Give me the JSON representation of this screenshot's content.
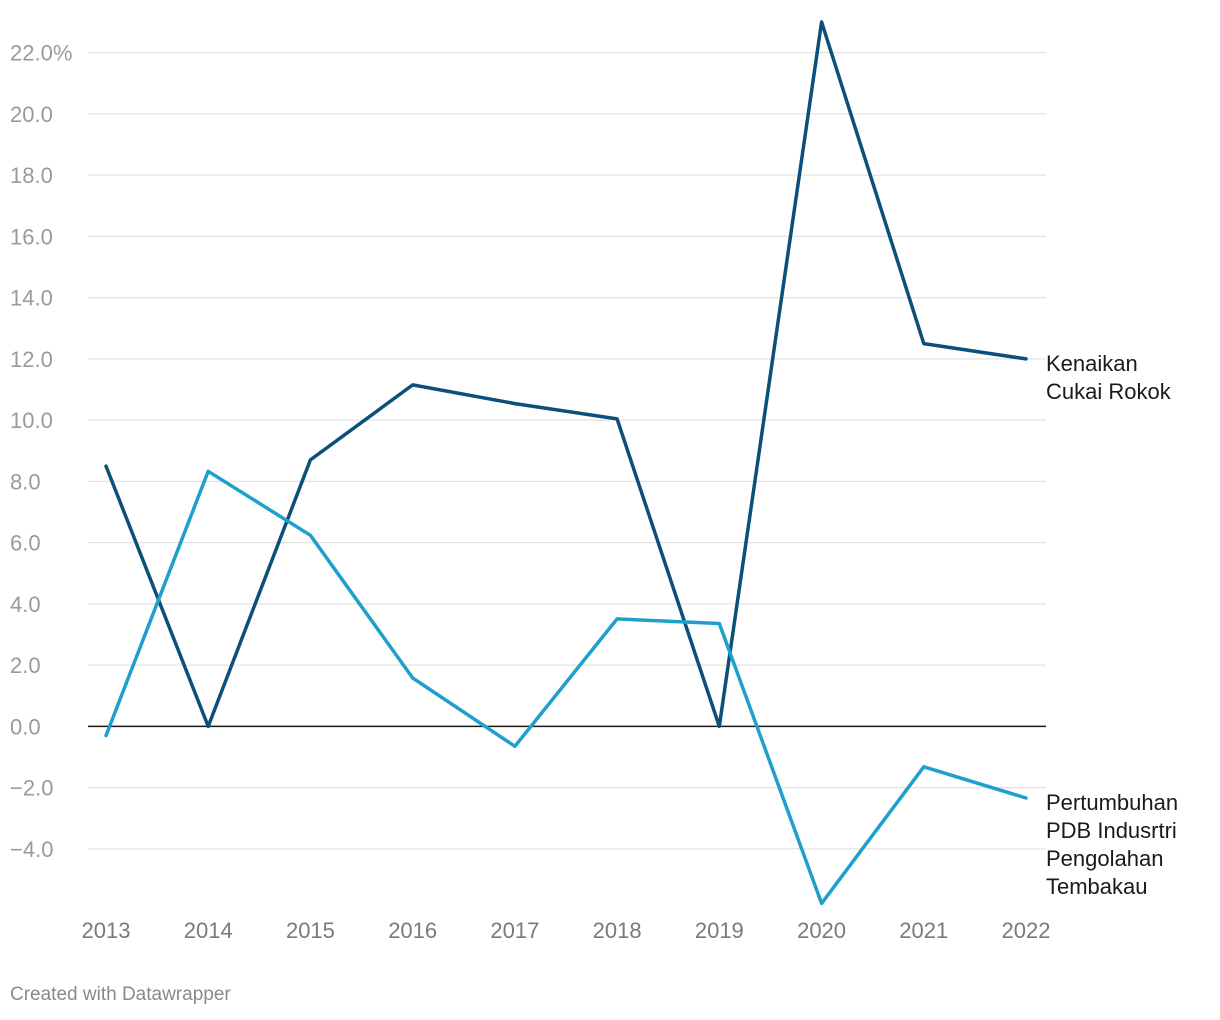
{
  "chart_data": {
    "type": "line",
    "x": [
      "2013",
      "2014",
      "2015",
      "2016",
      "2017",
      "2018",
      "2019",
      "2020",
      "2021",
      "2022"
    ],
    "y_ticks": [
      -4,
      -2,
      0,
      2,
      4,
      6,
      8,
      10,
      12,
      14,
      16,
      18,
      20,
      22
    ],
    "y_tick_labels": [
      "−4.0",
      "−2.0",
      "0.0",
      "2.0",
      "4.0",
      "6.0",
      "8.0",
      "10.0",
      "12.0",
      "14.0",
      "16.0",
      "18.0",
      "20.0",
      "22.0%"
    ],
    "ylim": [
      -5.8,
      23
    ],
    "grid": true,
    "series": [
      {
        "name": "Kenaikan Cukai Rokok",
        "label_lines": [
          "Kenaikan",
          "Cukai Rokok"
        ],
        "color": "#0b5079",
        "values": [
          8.5,
          0,
          8.7,
          11.15,
          10.54,
          10.04,
          0,
          23,
          12.5,
          12.0
        ]
      },
      {
        "name": "Pertumbuhan PDB Indusrtri Pengolahan Tembakau",
        "label_lines": [
          "Pertumbuhan",
          "PDB Indusrtri",
          "Pengolahan",
          "Tembakau"
        ],
        "color": "#1fa0cc",
        "values": [
          -0.3,
          8.33,
          6.24,
          1.58,
          -0.65,
          3.51,
          3.36,
          -5.78,
          -1.32,
          -2.34
        ]
      }
    ],
    "zero_line_color": "#1a1a1a",
    "grid_color": "#e3e3e3"
  },
  "footer": {
    "credit": "Created with Datawrapper"
  }
}
